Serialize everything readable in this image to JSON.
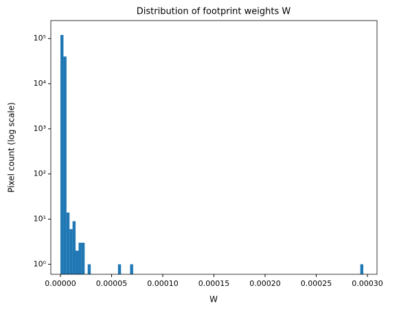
{
  "chart_data": {
    "type": "histogram",
    "title": "Distribution of footprint weights W",
    "xlabel": "W",
    "ylabel": "Pixel count (log scale)",
    "color": "#1f77b4",
    "yscale": "log",
    "bins": [
      0,
      2.96e-06,
      5.92e-06,
      8.88e-06,
      1.184e-05,
      1.48e-05,
      1.776e-05,
      2.072e-05,
      2.368e-05,
      2.664e-05,
      2.96e-05,
      3.256e-05,
      3.552e-05,
      3.848e-05,
      4.144e-05,
      4.44e-05,
      4.736e-05,
      5.032e-05,
      5.328e-05,
      5.624e-05,
      5.92e-05,
      6.216e-05,
      6.512e-05,
      6.808e-05,
      7.104e-05,
      7.4e-05,
      7.696e-05,
      7.992e-05,
      8.288e-05,
      8.584e-05,
      8.88e-05,
      9.176e-05,
      9.472e-05,
      9.768e-05,
      0.00010064,
      0.0001036,
      0.00010656,
      0.00010952,
      0.00011248,
      0.00011544,
      0.0001184,
      0.00012136,
      0.00012432,
      0.00012728,
      0.00013024,
      0.0001332,
      0.00013616,
      0.00013912,
      0.00014208,
      0.00014504,
      0.000148,
      0.00015096,
      0.00015392,
      0.00015688,
      0.00015984,
      0.0001628,
      0.00016576,
      0.00016872,
      0.00017168,
      0.00017464,
      0.0001776,
      0.00018056,
      0.00018352,
      0.00018648,
      0.00018944,
      0.0001924,
      0.00019536,
      0.00019832,
      0.00020128,
      0.00020424,
      0.0002072,
      0.00021016,
      0.00021312,
      0.00021608,
      0.00021904,
      0.000222,
      0.00022496,
      0.00022792,
      0.00023088,
      0.00023384,
      0.0002368,
      0.00023976,
      0.00024272,
      0.00024568,
      0.00024864,
      0.0002516,
      0.00025456,
      0.00025752,
      0.00026048,
      0.00026344,
      0.0002664,
      0.00026936,
      0.00027232,
      0.00027528,
      0.00027824,
      0.0002812,
      0.00028416,
      0.00028712,
      0.00029008,
      0.00029304,
      0.000296
    ],
    "values": [
      120000,
      40000,
      14,
      6,
      9,
      2,
      3,
      3,
      0,
      1,
      0,
      0,
      0,
      0,
      0,
      0,
      0,
      0,
      0,
      1,
      0,
      0,
      0,
      1,
      0,
      0,
      0,
      0,
      0,
      0,
      0,
      0,
      0,
      0,
      0,
      0,
      0,
      0,
      0,
      0,
      0,
      0,
      0,
      0,
      0,
      0,
      0,
      0,
      0,
      0,
      0,
      0,
      0,
      0,
      0,
      0,
      0,
      0,
      0,
      0,
      0,
      0,
      0,
      0,
      0,
      0,
      0,
      0,
      0,
      0,
      0,
      0,
      0,
      0,
      0,
      0,
      0,
      0,
      0,
      0,
      0,
      0,
      0,
      0,
      0,
      0,
      0,
      0,
      0,
      0,
      0,
      0,
      0,
      0,
      0,
      0,
      0,
      0,
      0,
      1
    ],
    "xlim": [
      -9.4e-06,
      0.0003094
    ],
    "xticks": [
      {
        "value": 0,
        "label": "0.00000"
      },
      {
        "value": 5e-05,
        "label": "0.00005"
      },
      {
        "value": 0.0001,
        "label": "0.00010"
      },
      {
        "value": 0.00015,
        "label": "0.00015"
      },
      {
        "value": 0.0002,
        "label": "0.00020"
      },
      {
        "value": 0.00025,
        "label": "0.00025"
      },
      {
        "value": 0.0003,
        "label": "0.00030"
      }
    ],
    "ylim": [
      0.6,
      250000
    ],
    "yticks": [
      {
        "value": 1,
        "label": "10⁰"
      },
      {
        "value": 10,
        "label": "10¹"
      },
      {
        "value": 100,
        "label": "10²"
      },
      {
        "value": 1000,
        "label": "10³"
      },
      {
        "value": 10000,
        "label": "10⁴"
      },
      {
        "value": 100000,
        "label": "10⁵"
      }
    ]
  }
}
